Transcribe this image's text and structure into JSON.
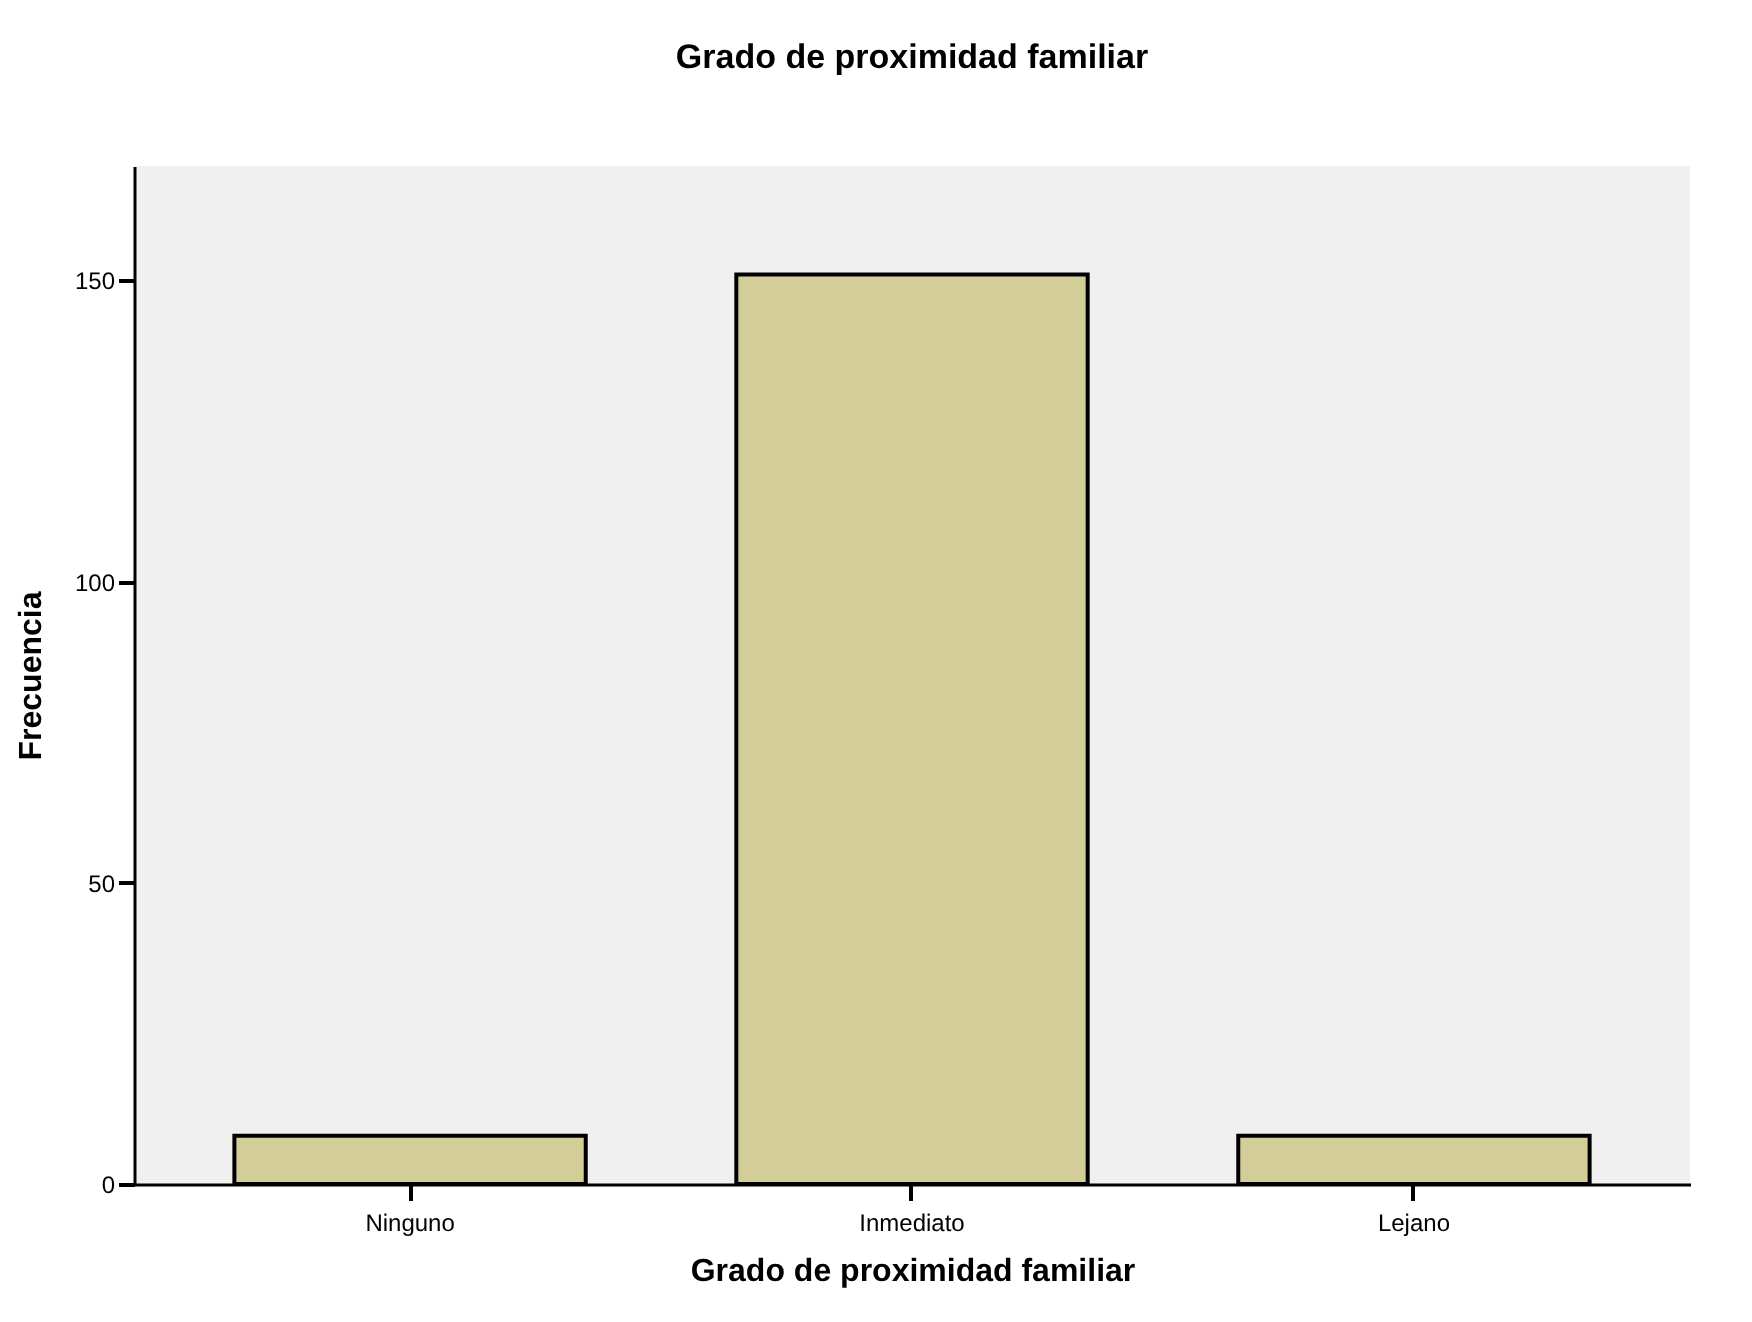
{
  "chart_data": {
    "type": "bar",
    "title": "Grado de proximidad familiar",
    "xlabel": "Grado de proximidad familiar",
    "ylabel": "Frecuencia",
    "categories": [
      "Ninguno",
      "Inmediato",
      "Lejano"
    ],
    "values": [
      8,
      151,
      8
    ],
    "color": "#d3ce98",
    "ylim": [
      0,
      169
    ],
    "yticks": [
      0,
      50,
      100,
      150
    ],
    "grid": false
  }
}
